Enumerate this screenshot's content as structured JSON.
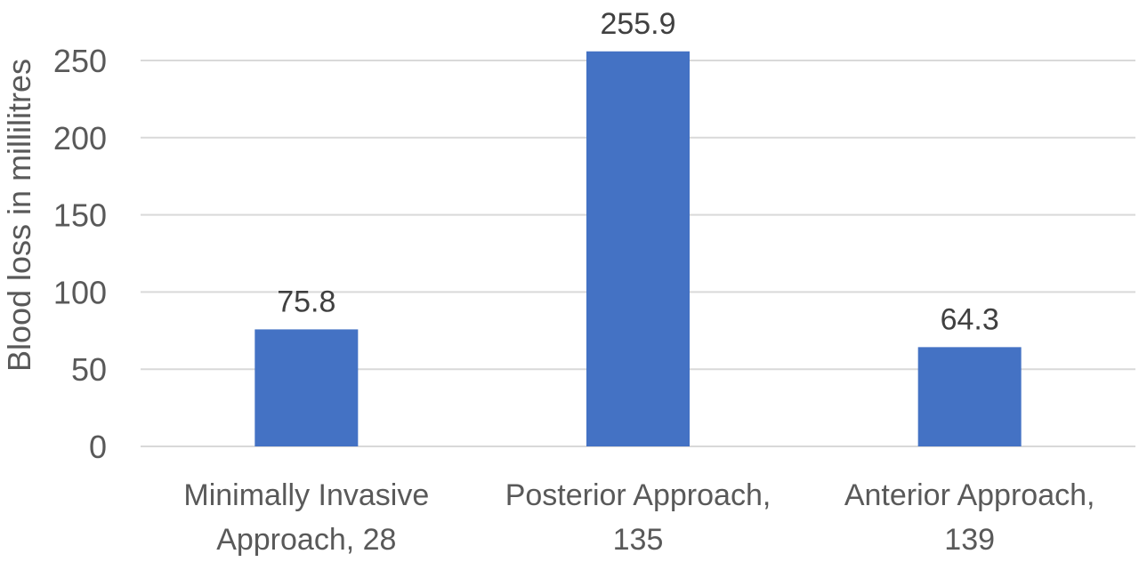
{
  "chart_data": {
    "type": "bar",
    "title": "",
    "xlabel": "",
    "ylabel": "Blood loss in millilitres",
    "categories": [
      [
        "Minimally Invasive",
        "Approach, 28"
      ],
      [
        "Posterior Approach,",
        "135"
      ],
      [
        "Anterior Approach,",
        "139"
      ]
    ],
    "values": [
      75.8,
      255.9,
      64.3
    ],
    "data_labels": [
      "75.8",
      "255.9",
      "64.3"
    ],
    "ylim": [
      0,
      250
    ],
    "yticks": [
      0,
      50,
      100,
      150,
      200,
      250
    ],
    "grid": true,
    "legend": "none",
    "bar_color": "#4472c4"
  }
}
